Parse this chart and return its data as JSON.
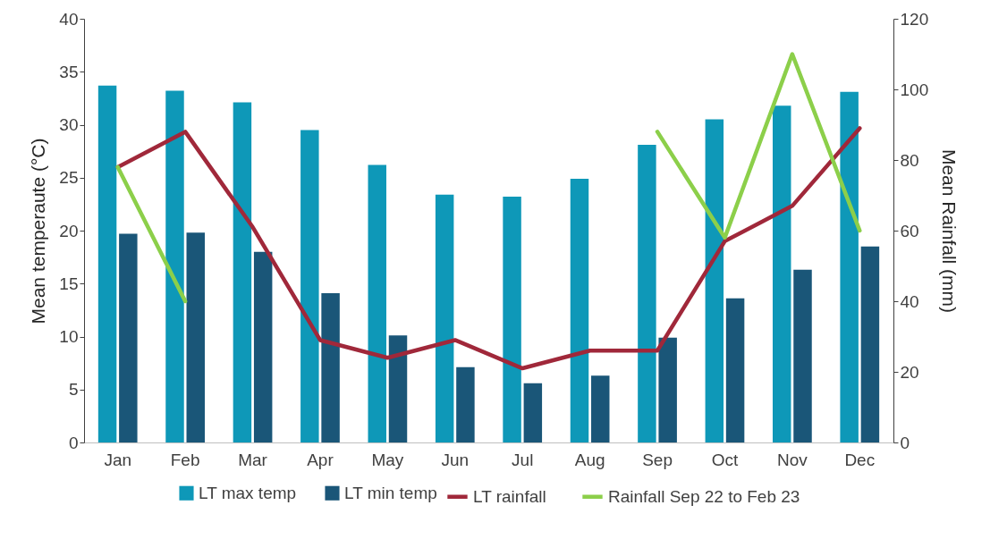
{
  "chart_data": {
    "type": "bar",
    "ylabel": "Mean temperaute (°C)",
    "y2label": "Mean Rainfall (mm)",
    "categories": [
      "Jan",
      "Feb",
      "Mar",
      "Apr",
      "May",
      "Jun",
      "Jul",
      "Aug",
      "Sep",
      "Oct",
      "Nov",
      "Dec"
    ],
    "ylim": [
      0,
      40
    ],
    "yticks": [
      0,
      5,
      10,
      15,
      20,
      25,
      30,
      35,
      40
    ],
    "y2lim": [
      0,
      120
    ],
    "y2ticks": [
      0,
      20,
      40,
      60,
      80,
      100,
      120
    ],
    "grid": false,
    "legend": "bottom",
    "series": [
      {
        "name": "LT max temp",
        "color": "#0e98b8",
        "values": [
          33.7,
          33.2,
          32.1,
          29.5,
          26.2,
          23.4,
          23.2,
          24.9,
          28.1,
          30.5,
          31.8,
          33.1
        ]
      },
      {
        "name": "LT min temp",
        "color": "#1a5678",
        "values": [
          19.7,
          19.8,
          18.0,
          14.1,
          10.1,
          7.1,
          5.6,
          6.3,
          9.9,
          13.6,
          16.3,
          18.5
        ]
      },
      {
        "name": "LT rainfall",
        "type": "line",
        "axis": "y2",
        "color": "#a0283a",
        "values": [
          78,
          88,
          61,
          29,
          24,
          29,
          21,
          26,
          26,
          57,
          67,
          89
        ]
      },
      {
        "name": "Rainfall Sep 22 to Feb 23",
        "type": "line",
        "axis": "y2",
        "color": "#8ccf4a",
        "values": [
          78,
          40,
          null,
          null,
          null,
          null,
          null,
          null,
          88,
          58,
          110,
          60
        ]
      }
    ]
  }
}
